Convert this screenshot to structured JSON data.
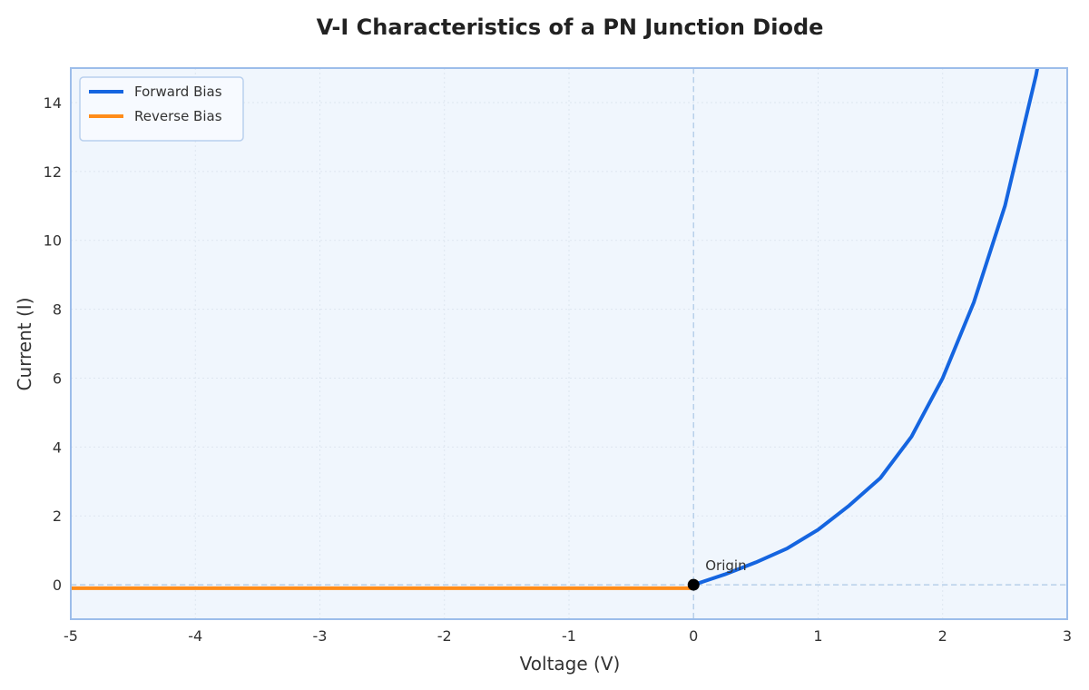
{
  "chart_data": {
    "type": "line",
    "title": "V-I Characteristics of a PN Junction Diode",
    "xlabel": "Voltage (V)",
    "ylabel": "Current (I)",
    "xlim": [
      -5,
      3
    ],
    "ylim": [
      -1,
      15
    ],
    "x_ticks": [
      -5,
      -4,
      -3,
      -2,
      -1,
      0,
      1,
      2,
      3
    ],
    "y_ticks": [
      0,
      2,
      4,
      6,
      8,
      10,
      12,
      14
    ],
    "grid": true,
    "legend_position": "top-left",
    "series": [
      {
        "name": "Forward Bias",
        "color": "#1565e0",
        "x": [
          0,
          0.25,
          0.5,
          0.75,
          1.0,
          1.25,
          1.5,
          1.75,
          2.0,
          2.25,
          2.5,
          2.75,
          2.76
        ],
        "y": [
          0.0,
          0.3,
          0.65,
          1.05,
          1.6,
          2.3,
          3.1,
          4.3,
          6.0,
          8.2,
          11.0,
          14.8,
          15.0
        ]
      },
      {
        "name": "Reverse Bias",
        "color": "#ff8c1a",
        "x": [
          -5,
          -4,
          -3,
          -2,
          -1,
          0
        ],
        "y": [
          -0.1,
          -0.1,
          -0.1,
          -0.1,
          -0.1,
          -0.1
        ]
      }
    ],
    "reference_lines": {
      "x": 0,
      "y": 0,
      "color": "#b8d0ea"
    },
    "point": {
      "x": 0,
      "y": 0,
      "label": "Origin",
      "color": "#000000"
    },
    "colors": {
      "plot_background": "#f0f6fd",
      "frame": "#9cbdea",
      "grid": "#dde6f0"
    }
  }
}
